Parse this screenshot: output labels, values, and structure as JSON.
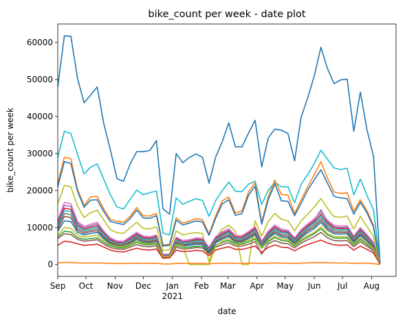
{
  "chart_data": {
    "type": "line",
    "title": "bike_count per week - date plot",
    "xlabel": "date",
    "ylabel": "bike_count per week",
    "ylim": [
      -3200,
      65000
    ],
    "xlim": [
      "2020-09-01",
      "2021-08-27"
    ],
    "grid": false,
    "legend": "none",
    "x_tick_labels": [
      "Sep",
      "Oct",
      "Nov",
      "Dec",
      "Jan",
      "Feb",
      "Mar",
      "Apr",
      "May",
      "Jun",
      "Jul",
      "Aug"
    ],
    "x_tick_dates": [
      "2020-09-01",
      "2020-10-01",
      "2020-11-01",
      "2020-12-01",
      "2021-01-01",
      "2021-02-01",
      "2021-03-01",
      "2021-04-01",
      "2021-05-01",
      "2021-06-01",
      "2021-07-01",
      "2021-08-01"
    ],
    "x_year_label": "2021",
    "y_ticks": [
      0,
      10000,
      20000,
      30000,
      40000,
      50000,
      60000
    ],
    "y_tick_labels": [
      "0",
      "10000",
      "20000",
      "30000",
      "40000",
      "50000",
      "60000"
    ],
    "x_start": "2020-09-01",
    "week_step_days": 7,
    "series": [
      {
        "color": "#1f77b4",
        "values": [
          48000,
          61800,
          61700,
          50300,
          43700,
          45800,
          48000,
          38000,
          31000,
          23200,
          22500,
          27200,
          30500,
          30500,
          30800,
          33500,
          15000,
          13600,
          30000,
          27500,
          28900,
          29900,
          29000,
          22000,
          29000,
          33200,
          38300,
          31800,
          31800,
          35500,
          39000,
          26400,
          34200,
          36600,
          36300,
          35400,
          28000,
          39900,
          45000,
          51000,
          58700,
          53000,
          48900,
          49900,
          50100,
          36000,
          46600,
          36500,
          29200,
          500
        ]
      },
      {
        "color": "#17becf",
        "values": [
          29000,
          36000,
          35400,
          29800,
          24500,
          26300,
          27200,
          23000,
          18900,
          15600,
          15000,
          17600,
          20100,
          18900,
          19400,
          19900,
          8500,
          8000,
          18000,
          16300,
          17100,
          17800,
          17300,
          13000,
          17300,
          19900,
          22300,
          19800,
          19700,
          21700,
          22500,
          16200,
          20100,
          22200,
          21000,
          21000,
          16700,
          21700,
          24300,
          27300,
          30900,
          28500,
          26100,
          25700,
          26000,
          18800,
          23100,
          18700,
          14800,
          400
        ]
      },
      {
        "color": "#ff7f0e",
        "values": [
          22000,
          29000,
          28600,
          20300,
          16000,
          18300,
          18400,
          15000,
          12200,
          11700,
          11400,
          13000,
          15400,
          13200,
          13100,
          13800,
          5300,
          5500,
          12600,
          11200,
          11700,
          12400,
          12100,
          8300,
          13100,
          17200,
          18300,
          13900,
          14500,
          19600,
          22100,
          11400,
          18300,
          22800,
          18900,
          18800,
          13800,
          17500,
          21000,
          24300,
          27800,
          23400,
          19600,
          19200,
          19400,
          14400,
          17500,
          14600,
          10600,
          200
        ]
      },
      {
        "color": "#1f77b4",
        "values": [
          21000,
          27800,
          27300,
          19800,
          15500,
          17400,
          17500,
          14300,
          11600,
          11200,
          10800,
          12400,
          14700,
          12600,
          12500,
          13200,
          5000,
          5200,
          12000,
          10700,
          11200,
          11800,
          11500,
          7900,
          12500,
          16400,
          17500,
          13300,
          13800,
          18700,
          21200,
          10900,
          17500,
          21800,
          17200,
          17100,
          13200,
          16600,
          20100,
          22900,
          25600,
          22000,
          18400,
          18000,
          17800,
          13600,
          16800,
          14000,
          10100,
          200
        ]
      },
      {
        "color": "#bcbd22",
        "values": [
          16500,
          21400,
          21000,
          15800,
          12700,
          14000,
          14700,
          12000,
          9400,
          8600,
          8400,
          9900,
          11400,
          9800,
          9600,
          10200,
          3800,
          4000,
          9100,
          8000,
          8400,
          8600,
          8400,
          600,
          7100,
          9600,
          10600,
          9000,
          0,
          0,
          11800,
          7700,
          11600,
          13800,
          12200,
          11800,
          9100,
          11800,
          13600,
          15600,
          17800,
          15200,
          12900,
          12800,
          13100,
          9600,
          13000,
          10300,
          7600,
          200
        ]
      },
      {
        "color": "#e377c2",
        "values": [
          12000,
          16800,
          16400,
          11600,
          10300,
          10900,
          11400,
          9000,
          7200,
          6400,
          6300,
          7500,
          8700,
          7700,
          7500,
          8000,
          2700,
          2800,
          7400,
          6500,
          6700,
          7200,
          7100,
          4600,
          7500,
          8800,
          9700,
          7800,
          7800,
          8900,
          10300,
          6300,
          9000,
          10700,
          9600,
          9300,
          7200,
          9400,
          11000,
          12400,
          14200,
          12000,
          10600,
          10400,
          10500,
          7700,
          10000,
          8100,
          6000,
          200
        ]
      },
      {
        "color": "#9467bd",
        "values": [
          11500,
          16000,
          15700,
          11200,
          9900,
          10500,
          11000,
          8700,
          6900,
          6100,
          6000,
          7200,
          8400,
          7400,
          7200,
          7700,
          2600,
          2700,
          7100,
          6200,
          6400,
          6900,
          6800,
          4400,
          7200,
          8500,
          9300,
          7500,
          7500,
          8600,
          9900,
          6000,
          8700,
          10300,
          9200,
          9000,
          6900,
          9100,
          10600,
          12000,
          14800,
          11600,
          10200,
          10000,
          10100,
          7400,
          9600,
          7800,
          5700,
          150
        ]
      },
      {
        "color": "#d62728",
        "values": [
          11000,
          15200,
          14900,
          10700,
          9500,
          10100,
          10500,
          8400,
          6700,
          5900,
          5800,
          6900,
          8100,
          7200,
          7000,
          7500,
          2500,
          2600,
          6900,
          6000,
          6200,
          6700,
          6600,
          4200,
          7000,
          8200,
          9000,
          7300,
          7300,
          8300,
          9600,
          5800,
          8400,
          10000,
          8900,
          8700,
          6700,
          8800,
          10300,
          11600,
          13600,
          11200,
          9900,
          9700,
          9800,
          7200,
          9300,
          7500,
          5500,
          150
        ]
      },
      {
        "color": "#17becf",
        "values": [
          10500,
          14600,
          14300,
          10300,
          9200,
          9700,
          10100,
          8100,
          6400,
          5700,
          5600,
          6600,
          7800,
          6900,
          6700,
          7200,
          2400,
          2500,
          6600,
          5800,
          6000,
          6400,
          6300,
          4000,
          6700,
          7900,
          8700,
          7000,
          7000,
          8000,
          9200,
          5600,
          8100,
          9600,
          8600,
          8400,
          6400,
          8500,
          9900,
          11200,
          13200,
          10800,
          9500,
          9400,
          9500,
          6900,
          9000,
          7200,
          5300,
          150
        ]
      },
      {
        "color": "#7f7f7f",
        "values": [
          10000,
          13800,
          13500,
          9800,
          8800,
          9300,
          9700,
          7700,
          6200,
          5500,
          5400,
          6300,
          7500,
          6600,
          6400,
          6900,
          2300,
          2400,
          6300,
          5500,
          5700,
          6100,
          6000,
          3800,
          6400,
          7600,
          8300,
          6700,
          6700,
          7700,
          8800,
          5300,
          7800,
          9200,
          8200,
          8000,
          6100,
          8100,
          9500,
          10700,
          12600,
          10300,
          9100,
          9000,
          9100,
          6600,
          8600,
          6900,
          5100,
          100
        ]
      },
      {
        "color": "#8c564b",
        "values": [
          9500,
          13000,
          12700,
          9300,
          8400,
          8900,
          9200,
          7300,
          5900,
          5200,
          5100,
          6000,
          7200,
          6300,
          6100,
          6600,
          2200,
          2300,
          6000,
          5200,
          5400,
          5800,
          5700,
          3600,
          6100,
          7200,
          7900,
          6400,
          6400,
          7300,
          8400,
          5000,
          7400,
          8800,
          7800,
          7600,
          5800,
          7700,
          9100,
          10200,
          12000,
          9800,
          8700,
          8600,
          8700,
          6300,
          8200,
          6600,
          4900,
          100
        ]
      },
      {
        "color": "#1f77b4",
        "values": [
          9000,
          11800,
          11600,
          8700,
          8000,
          8400,
          8700,
          7000,
          5600,
          5000,
          4900,
          5700,
          6800,
          6000,
          5800,
          6200,
          2100,
          2200,
          5700,
          5000,
          5200,
          5500,
          5400,
          3400,
          5800,
          6900,
          7500,
          6100,
          6100,
          7000,
          8000,
          4800,
          7100,
          8400,
          7400,
          7200,
          5500,
          7300,
          8600,
          9700,
          11400,
          9300,
          8300,
          8200,
          8300,
          6000,
          7800,
          6300,
          4600,
          100
        ]
      },
      {
        "color": "#2ca02c",
        "values": [
          7500,
          9000,
          8800,
          7300,
          6800,
          7000,
          7200,
          6000,
          5100,
          4600,
          4500,
          5200,
          6000,
          5400,
          5300,
          5600,
          2000,
          2100,
          5200,
          4600,
          4700,
          5000,
          4900,
          3100,
          5200,
          6000,
          6500,
          5500,
          5500,
          6100,
          6900,
          4400,
          6200,
          7300,
          6500,
          6300,
          5000,
          6400,
          7400,
          8300,
          9700,
          8000,
          7200,
          7100,
          7200,
          5300,
          6800,
          5500,
          4100,
          100
        ]
      },
      {
        "color": "#8c564b",
        "values": [
          7000,
          8300,
          8100,
          6800,
          6300,
          6500,
          6700,
          5500,
          4600,
          4200,
          4100,
          4700,
          5400,
          4900,
          4800,
          5100,
          1900,
          2000,
          4700,
          4200,
          4300,
          4600,
          4500,
          2900,
          4700,
          5400,
          5900,
          5000,
          5000,
          5500,
          6200,
          2800,
          5600,
          6500,
          5800,
          5600,
          4500,
          5800,
          6700,
          7500,
          8700,
          7200,
          6500,
          6400,
          6500,
          4800,
          6200,
          5000,
          3700,
          100
        ]
      },
      {
        "color": "#bcbd22",
        "values": [
          8000,
          10000,
          9800,
          8000,
          7400,
          7700,
          7900,
          6500,
          5400,
          4900,
          4800,
          5500,
          6400,
          5700,
          5600,
          5900,
          2100,
          2200,
          5500,
          5000,
          0,
          0,
          0,
          0,
          4900,
          6400,
          6900,
          5800,
          5800,
          6500,
          7300,
          4600,
          6600,
          7700,
          6900,
          6700,
          5300,
          6800,
          7800,
          8700,
          10200,
          8400,
          7600,
          7500,
          7600,
          5600,
          7200,
          5800,
          4300,
          100
        ]
      },
      {
        "color": "#d62728",
        "values": [
          5200,
          6300,
          6100,
          5600,
          5200,
          5300,
          5500,
          4700,
          3900,
          3500,
          3400,
          3900,
          4400,
          4000,
          3900,
          4200,
          1700,
          1800,
          3900,
          3500,
          3600,
          3800,
          3700,
          2400,
          3900,
          4400,
          4800,
          4100,
          4100,
          4500,
          5000,
          3300,
          4600,
          5300,
          4700,
          4600,
          3700,
          4700,
          5400,
          6000,
          6600,
          5800,
          5300,
          5200,
          5300,
          3900,
          5000,
          4100,
          3100,
          100
        ]
      },
      {
        "color": "#ff7f0e",
        "values": [
          400,
          600,
          550,
          450,
          400,
          420,
          450,
          380,
          300,
          270,
          260,
          300,
          350,
          320,
          310,
          330,
          150,
          160,
          310,
          280,
          290,
          300,
          300,
          200,
          310,
          350,
          380,
          330,
          330,
          360,
          400,
          260,
          370,
          420,
          380,
          370,
          290,
          380,
          440,
          490,
          550,
          470,
          420,
          410,
          420,
          310,
          400,
          330,
          250,
          10
        ]
      }
    ]
  }
}
